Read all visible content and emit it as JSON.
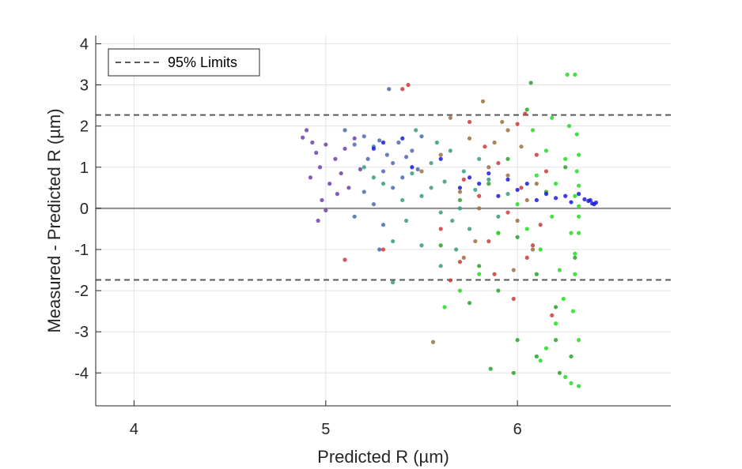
{
  "chart_data": {
    "type": "scatter",
    "xlabel": "Predicted R (µm)",
    "ylabel": "Measured - Predicted R (µm)",
    "xlim": [
      3.8,
      6.8
    ],
    "ylim": [
      -4.8,
      4.2
    ],
    "xticks": [
      4,
      5,
      6
    ],
    "yticks": [
      -4,
      -3,
      -2,
      -1,
      0,
      1,
      2,
      3,
      4
    ],
    "grid": true,
    "legend": {
      "placement": "top-left",
      "entries": [
        "95% Limits"
      ]
    },
    "reference_lines": [
      {
        "type": "zero",
        "y": 0,
        "style": "solid",
        "color": "#8c8c8c"
      },
      {
        "type": "limit",
        "name": "95% Limits",
        "y": 2.27,
        "style": "dashed",
        "color": "#595959"
      },
      {
        "type": "limit",
        "y": -1.74,
        "style": "dashed",
        "color": "#595959"
      }
    ],
    "series": [
      {
        "color": "#7040b0",
        "points": [
          [
            4.88,
            1.72
          ],
          [
            4.9,
            1.9
          ],
          [
            4.93,
            1.6
          ],
          [
            4.95,
            1.35
          ],
          [
            4.97,
            1.0
          ],
          [
            5.0,
            1.55
          ],
          [
            5.02,
            0.6
          ],
          [
            4.98,
            0.2
          ],
          [
            5.05,
            1.2
          ],
          [
            5.08,
            0.85
          ],
          [
            5.1,
            1.45
          ],
          [
            5.12,
            0.5
          ],
          [
            5.15,
            1.7
          ],
          [
            4.96,
            -0.3
          ],
          [
            5.0,
            -0.05
          ],
          [
            5.18,
            0.95
          ],
          [
            4.92,
            0.75
          ],
          [
            5.06,
            0.35
          ]
        ]
      },
      {
        "color": "#4a6ab0",
        "points": [
          [
            5.1,
            1.9
          ],
          [
            5.15,
            1.55
          ],
          [
            5.2,
            1.75
          ],
          [
            5.22,
            1.2
          ],
          [
            5.25,
            1.5
          ],
          [
            5.28,
            1.65
          ],
          [
            5.3,
            0.9
          ],
          [
            5.32,
            1.3
          ],
          [
            5.35,
            1.1
          ],
          [
            5.38,
            1.6
          ],
          [
            5.4,
            0.75
          ],
          [
            5.42,
            1.25
          ],
          [
            5.2,
            0.4
          ],
          [
            5.25,
            0.1
          ],
          [
            5.3,
            -0.4
          ],
          [
            5.35,
            0.5
          ],
          [
            5.45,
            1.4
          ],
          [
            5.48,
            0.95
          ],
          [
            5.5,
            1.75
          ],
          [
            5.15,
            -0.2
          ],
          [
            5.28,
            -1.0
          ],
          [
            5.33,
            2.9
          ]
        ]
      },
      {
        "color": "#3a9a80",
        "points": [
          [
            5.2,
            1.0
          ],
          [
            5.3,
            0.6
          ],
          [
            5.4,
            0.2
          ],
          [
            5.45,
            0.85
          ],
          [
            5.5,
            0.3
          ],
          [
            5.55,
            1.1
          ],
          [
            5.6,
            -0.1
          ],
          [
            5.62,
            0.65
          ],
          [
            5.65,
            1.4
          ],
          [
            5.7,
            0.0
          ],
          [
            5.72,
            0.9
          ],
          [
            5.75,
            -0.5
          ],
          [
            5.78,
            0.45
          ],
          [
            5.8,
            1.2
          ],
          [
            5.35,
            -0.8
          ],
          [
            5.42,
            -0.3
          ],
          [
            5.5,
            -0.9
          ],
          [
            5.55,
            0.5
          ],
          [
            5.58,
            1.6
          ],
          [
            5.66,
            -0.3
          ],
          [
            5.85,
            0.7
          ],
          [
            5.9,
            -0.2
          ],
          [
            5.95,
            0.35
          ],
          [
            5.35,
            -1.8
          ],
          [
            5.6,
            -1.4
          ],
          [
            5.68,
            -1.0
          ],
          [
            5.25,
            0.75
          ],
          [
            5.47,
            1.9
          ]
        ]
      },
      {
        "color": "#9a7040",
        "points": [
          [
            5.5,
            0.9
          ],
          [
            5.6,
            1.3
          ],
          [
            5.7,
            0.4
          ],
          [
            5.75,
            1.7
          ],
          [
            5.8,
            0.0
          ],
          [
            5.85,
            1.0
          ],
          [
            5.9,
            -0.6
          ],
          [
            5.92,
            2.1
          ],
          [
            5.95,
            0.8
          ],
          [
            6.0,
            -0.3
          ],
          [
            6.02,
            1.5
          ],
          [
            6.05,
            0.2
          ],
          [
            6.08,
            -1.0
          ],
          [
            5.65,
            2.2
          ],
          [
            5.78,
            -0.8
          ],
          [
            5.88,
            1.6
          ],
          [
            5.98,
            -1.5
          ],
          [
            6.1,
            0.6
          ],
          [
            5.72,
            -1.2
          ],
          [
            5.82,
            2.6
          ],
          [
            5.56,
            -3.25
          ],
          [
            5.95,
            1.9
          ]
        ]
      },
      {
        "color": "#cc3a3a",
        "points": [
          [
            5.3,
            -1.0
          ],
          [
            5.4,
            2.9
          ],
          [
            5.43,
            3.0
          ],
          [
            5.6,
            -0.5
          ],
          [
            5.7,
            -1.3
          ],
          [
            5.75,
            2.1
          ],
          [
            5.8,
            0.3
          ],
          [
            5.85,
            -0.8
          ],
          [
            5.9,
            1.1
          ],
          [
            5.95,
            -0.1
          ],
          [
            6.0,
            2.05
          ],
          [
            6.02,
            0.5
          ],
          [
            6.05,
            -1.2
          ],
          [
            6.1,
            1.3
          ],
          [
            6.12,
            -0.4
          ],
          [
            6.15,
            0.9
          ],
          [
            5.88,
            -1.6
          ],
          [
            5.98,
            -2.2
          ],
          [
            6.08,
            -0.9
          ],
          [
            5.72,
            0.7
          ],
          [
            5.83,
            1.5
          ],
          [
            5.65,
            -1.75
          ],
          [
            6.18,
            -2.6
          ],
          [
            5.1,
            -1.25
          ],
          [
            6.04,
            2.3
          ]
        ]
      },
      {
        "color": "#2aa02a",
        "points": [
          [
            5.6,
            -0.9
          ],
          [
            5.7,
            0.2
          ],
          [
            5.8,
            -1.4
          ],
          [
            5.85,
            0.6
          ],
          [
            5.9,
            -2.0
          ],
          [
            5.95,
            1.2
          ],
          [
            6.0,
            -0.7
          ],
          [
            6.05,
            2.4
          ],
          [
            6.1,
            -1.6
          ],
          [
            6.15,
            0.4
          ],
          [
            6.2,
            -2.4
          ],
          [
            6.25,
            1.0
          ],
          [
            6.3,
            -1.2
          ],
          [
            6.0,
            -3.2
          ],
          [
            6.1,
            -3.6
          ],
          [
            6.2,
            -3.2
          ],
          [
            6.22,
            -4.0
          ],
          [
            5.86,
            -3.9
          ],
          [
            5.75,
            -2.3
          ],
          [
            6.07,
            3.05
          ],
          [
            6.28,
            -3.6
          ],
          [
            5.98,
            -4.0
          ]
        ]
      },
      {
        "color": "#22dd22",
        "points": [
          [
            6.0,
            0.1
          ],
          [
            6.05,
            -0.5
          ],
          [
            6.1,
            0.8
          ],
          [
            6.12,
            -1.0
          ],
          [
            6.15,
            1.4
          ],
          [
            6.18,
            -0.2
          ],
          [
            6.2,
            0.6
          ],
          [
            6.22,
            -1.5
          ],
          [
            6.25,
            1.2
          ],
          [
            6.28,
            -0.6
          ],
          [
            6.3,
            0.3
          ],
          [
            6.32,
            1.3
          ],
          [
            6.32,
            -0.2
          ],
          [
            6.31,
            0.9
          ],
          [
            6.3,
            -1.1
          ],
          [
            6.27,
            2.0
          ],
          [
            6.24,
            -2.2
          ],
          [
            6.26,
            3.25
          ],
          [
            6.3,
            3.25
          ],
          [
            6.2,
            -2.8
          ],
          [
            6.15,
            -3.4
          ],
          [
            6.12,
            -3.7
          ],
          [
            6.25,
            -4.1
          ],
          [
            6.28,
            -4.25
          ],
          [
            6.32,
            -4.32
          ],
          [
            6.18,
            2.2
          ],
          [
            6.08,
            1.9
          ],
          [
            5.9,
            -0.6
          ],
          [
            5.8,
            -1.6
          ],
          [
            5.7,
            -2.0
          ],
          [
            5.62,
            -2.4
          ],
          [
            6.32,
            0.05
          ],
          [
            6.32,
            0.55
          ],
          [
            6.32,
            -0.6
          ],
          [
            6.31,
            1.8
          ],
          [
            6.3,
            -1.6
          ],
          [
            6.29,
            -2.5
          ],
          [
            6.32,
            -3.2
          ]
        ]
      },
      {
        "color": "#1a1adc",
        "points": [
          [
            5.3,
            1.6
          ],
          [
            5.45,
            1.0
          ],
          [
            5.6,
            1.2
          ],
          [
            5.7,
            0.5
          ],
          [
            5.8,
            0.6
          ],
          [
            5.85,
            0.85
          ],
          [
            5.9,
            0.3
          ],
          [
            5.95,
            0.7
          ],
          [
            6.0,
            0.45
          ],
          [
            6.05,
            0.6
          ],
          [
            6.1,
            0.2
          ],
          [
            6.15,
            0.35
          ],
          [
            6.2,
            0.25
          ],
          [
            6.25,
            0.3
          ],
          [
            6.28,
            0.15
          ],
          [
            6.32,
            0.35
          ],
          [
            6.35,
            0.22
          ],
          [
            6.37,
            0.18
          ],
          [
            6.39,
            0.12
          ],
          [
            6.4,
            0.1
          ],
          [
            6.41,
            0.14
          ],
          [
            6.38,
            0.2
          ],
          [
            5.25,
            1.45
          ],
          [
            5.4,
            1.7
          ],
          [
            5.75,
            0.75
          ]
        ]
      }
    ]
  }
}
